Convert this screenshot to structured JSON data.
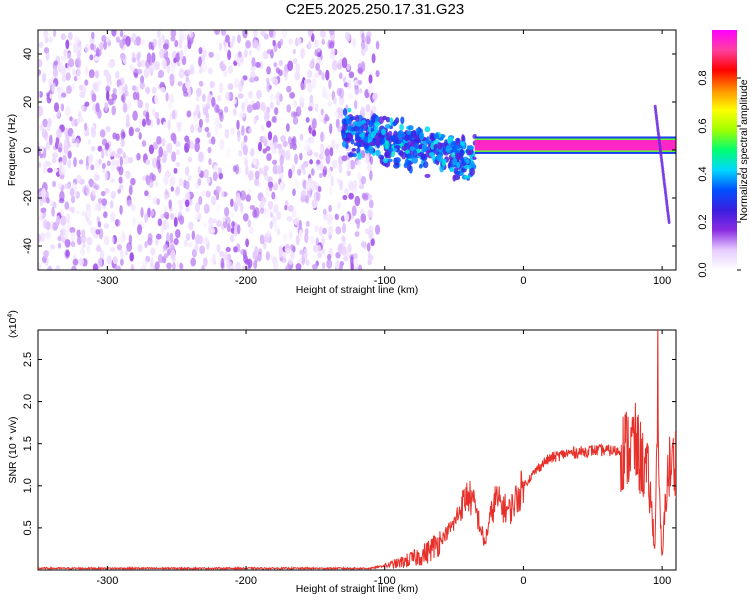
{
  "figure": {
    "title": "C2E5.2025.250.17.31.G23"
  },
  "chart_data": [
    {
      "type": "heatmap",
      "title": "",
      "xlabel": "Height of straight line (km)",
      "ylabel": "Frequency (Hz)",
      "xlim": [
        -350,
        110
      ],
      "ylim": [
        -50,
        50
      ],
      "xticks": [
        -300,
        -200,
        -100,
        0,
        100
      ],
      "yticks": [
        -40,
        -20,
        0,
        20,
        40
      ],
      "colorbar": {
        "label": "Normalized spectral amplitude",
        "range": [
          0,
          1
        ],
        "ticks": [
          "0.0",
          "0.2",
          "0.4",
          "0.6",
          "0.8"
        ],
        "tick_values": [
          0.0,
          0.2,
          0.4,
          0.6,
          0.8
        ],
        "colors": [
          "#ffffff",
          "#e6ccff",
          "#8a2be2",
          "#3a1ee0",
          "#0050ff",
          "#00d8ff",
          "#00ff70",
          "#a0ff00",
          "#ffff00",
          "#ff9000",
          "#ff0000",
          "#ff40a0",
          "#ff00ff"
        ]
      },
      "regions": [
        {
          "name": "noise",
          "x_range": [
            -350,
            -105
          ],
          "freq_range": [
            -50,
            50
          ],
          "amplitude_level": [
            0.02,
            0.15
          ]
        },
        {
          "name": "transition",
          "x_range": [
            -130,
            -35
          ],
          "freq_center": [
            8,
            -4
          ],
          "freq_spread": 8,
          "amplitude_level": [
            0.2,
            0.45
          ]
        },
        {
          "name": "tone",
          "x_range": [
            -35,
            110
          ],
          "freq_center": 2,
          "amplitude_level": 0.95
        },
        {
          "name": "spur",
          "x_start": 95,
          "freq_range": [
            18,
            -30
          ],
          "amplitude_level": 0.2
        }
      ]
    },
    {
      "type": "line",
      "title": "",
      "xlabel": "Height of straight line (km)",
      "ylabel": "SNR (10 * v/v)",
      "y_multiplier": "(x10",
      "y_multiplier_exp": "4",
      "y_multiplier_close": ")",
      "xlim": [
        -350,
        110
      ],
      "ylim": [
        0,
        2.85
      ],
      "xticks": [
        -300,
        -200,
        -100,
        0,
        100
      ],
      "yticks": [
        "0.5",
        "1.0",
        "1.5",
        "2.0",
        "2.5"
      ],
      "ytick_values": [
        0.5,
        1.0,
        1.5,
        2.0,
        2.5
      ],
      "series": [
        {
          "name": "SNR",
          "color": "#e8302a",
          "x": [
            -350,
            -300,
            -200,
            -110,
            -100,
            -90,
            -80,
            -70,
            -60,
            -50,
            -45,
            -40,
            -35,
            -30,
            -28,
            -25,
            -20,
            -15,
            -10,
            -5,
            0,
            5,
            10,
            15,
            20,
            30,
            40,
            50,
            60,
            70,
            75,
            80,
            85,
            90,
            93,
            95,
            97,
            98,
            100,
            103,
            105,
            110
          ],
          "values": [
            0.02,
            0.02,
            0.02,
            0.02,
            0.05,
            0.08,
            0.13,
            0.2,
            0.35,
            0.55,
            0.75,
            0.9,
            0.75,
            0.45,
            0.3,
            0.55,
            0.85,
            0.75,
            0.7,
            0.85,
            1.0,
            1.1,
            1.2,
            1.28,
            1.33,
            1.38,
            1.4,
            1.42,
            1.42,
            1.41,
            1.45,
            1.5,
            1.3,
            1.1,
            0.6,
            0.25,
            2.6,
            0.8,
            0.1,
            1.0,
            1.2,
            1.3
          ]
        }
      ]
    }
  ]
}
